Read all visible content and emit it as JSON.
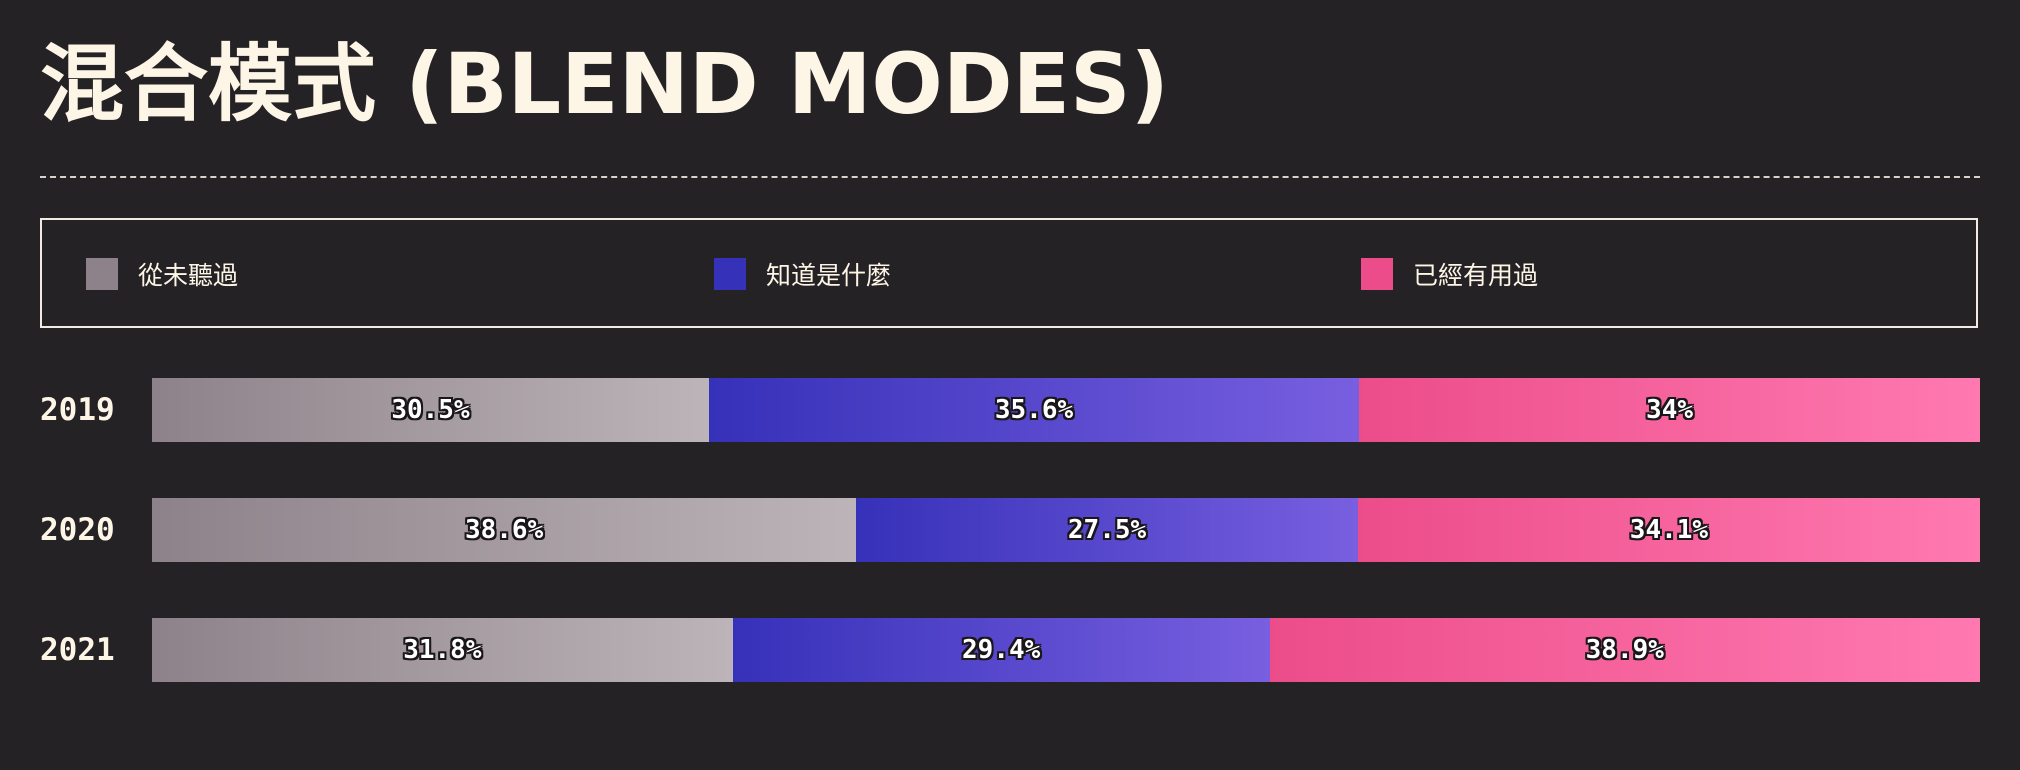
{
  "title": "混合模式 (BLEND MODES)",
  "legend": [
    {
      "label": "從未聽過",
      "color": "#8d8289"
    },
    {
      "label": "知道是什麼",
      "color": "#3631b9"
    },
    {
      "label": "已經有用過",
      "color": "#ec4d8a"
    }
  ],
  "chart_data": {
    "type": "bar",
    "orientation": "horizontal",
    "stacked": true,
    "title": "混合模式 (BLEND MODES)",
    "categories": [
      "2019",
      "2020",
      "2021"
    ],
    "series": [
      {
        "name": "從未聽過",
        "values": [
          30.5,
          38.6,
          31.8
        ],
        "labels": [
          "30.5%",
          "38.6%",
          "31.8%"
        ],
        "color": "#8d8289"
      },
      {
        "name": "知道是什麼",
        "values": [
          35.6,
          27.5,
          29.4
        ],
        "labels": [
          "35.6%",
          "27.5%",
          "29.4%"
        ],
        "color": "#3631b9"
      },
      {
        "name": "已經有用過",
        "values": [
          34,
          34.1,
          38.9
        ],
        "labels": [
          "34%",
          "34.1%",
          "38.9%"
        ],
        "color": "#ec4d8a"
      }
    ],
    "legend_position": "top",
    "grid": false
  }
}
